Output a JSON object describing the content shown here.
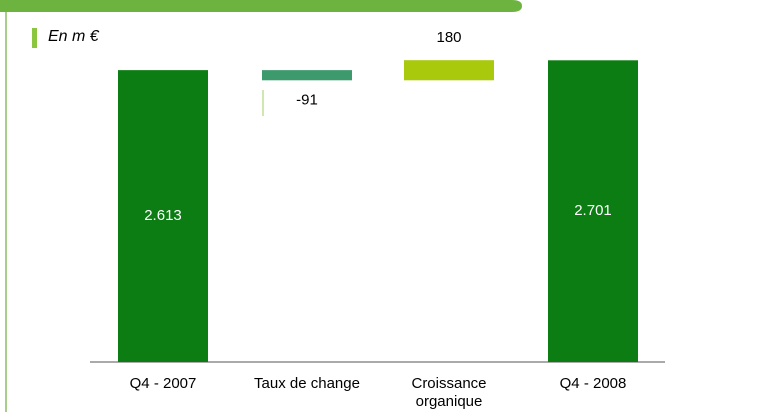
{
  "chart_data": {
    "type": "waterfall",
    "unit_label": "En m €",
    "categories": [
      "Q4 - 2007",
      "Taux de change",
      "Croissance organique",
      "Q4 - 2008"
    ],
    "values": [
      2613,
      -91,
      180,
      2701
    ],
    "value_labels": [
      "2.613",
      "-91",
      "180",
      "2.701"
    ],
    "colors": [
      "#0b7d12",
      "#3d9a6c",
      "#a8c90c",
      "#0b7d12"
    ]
  }
}
